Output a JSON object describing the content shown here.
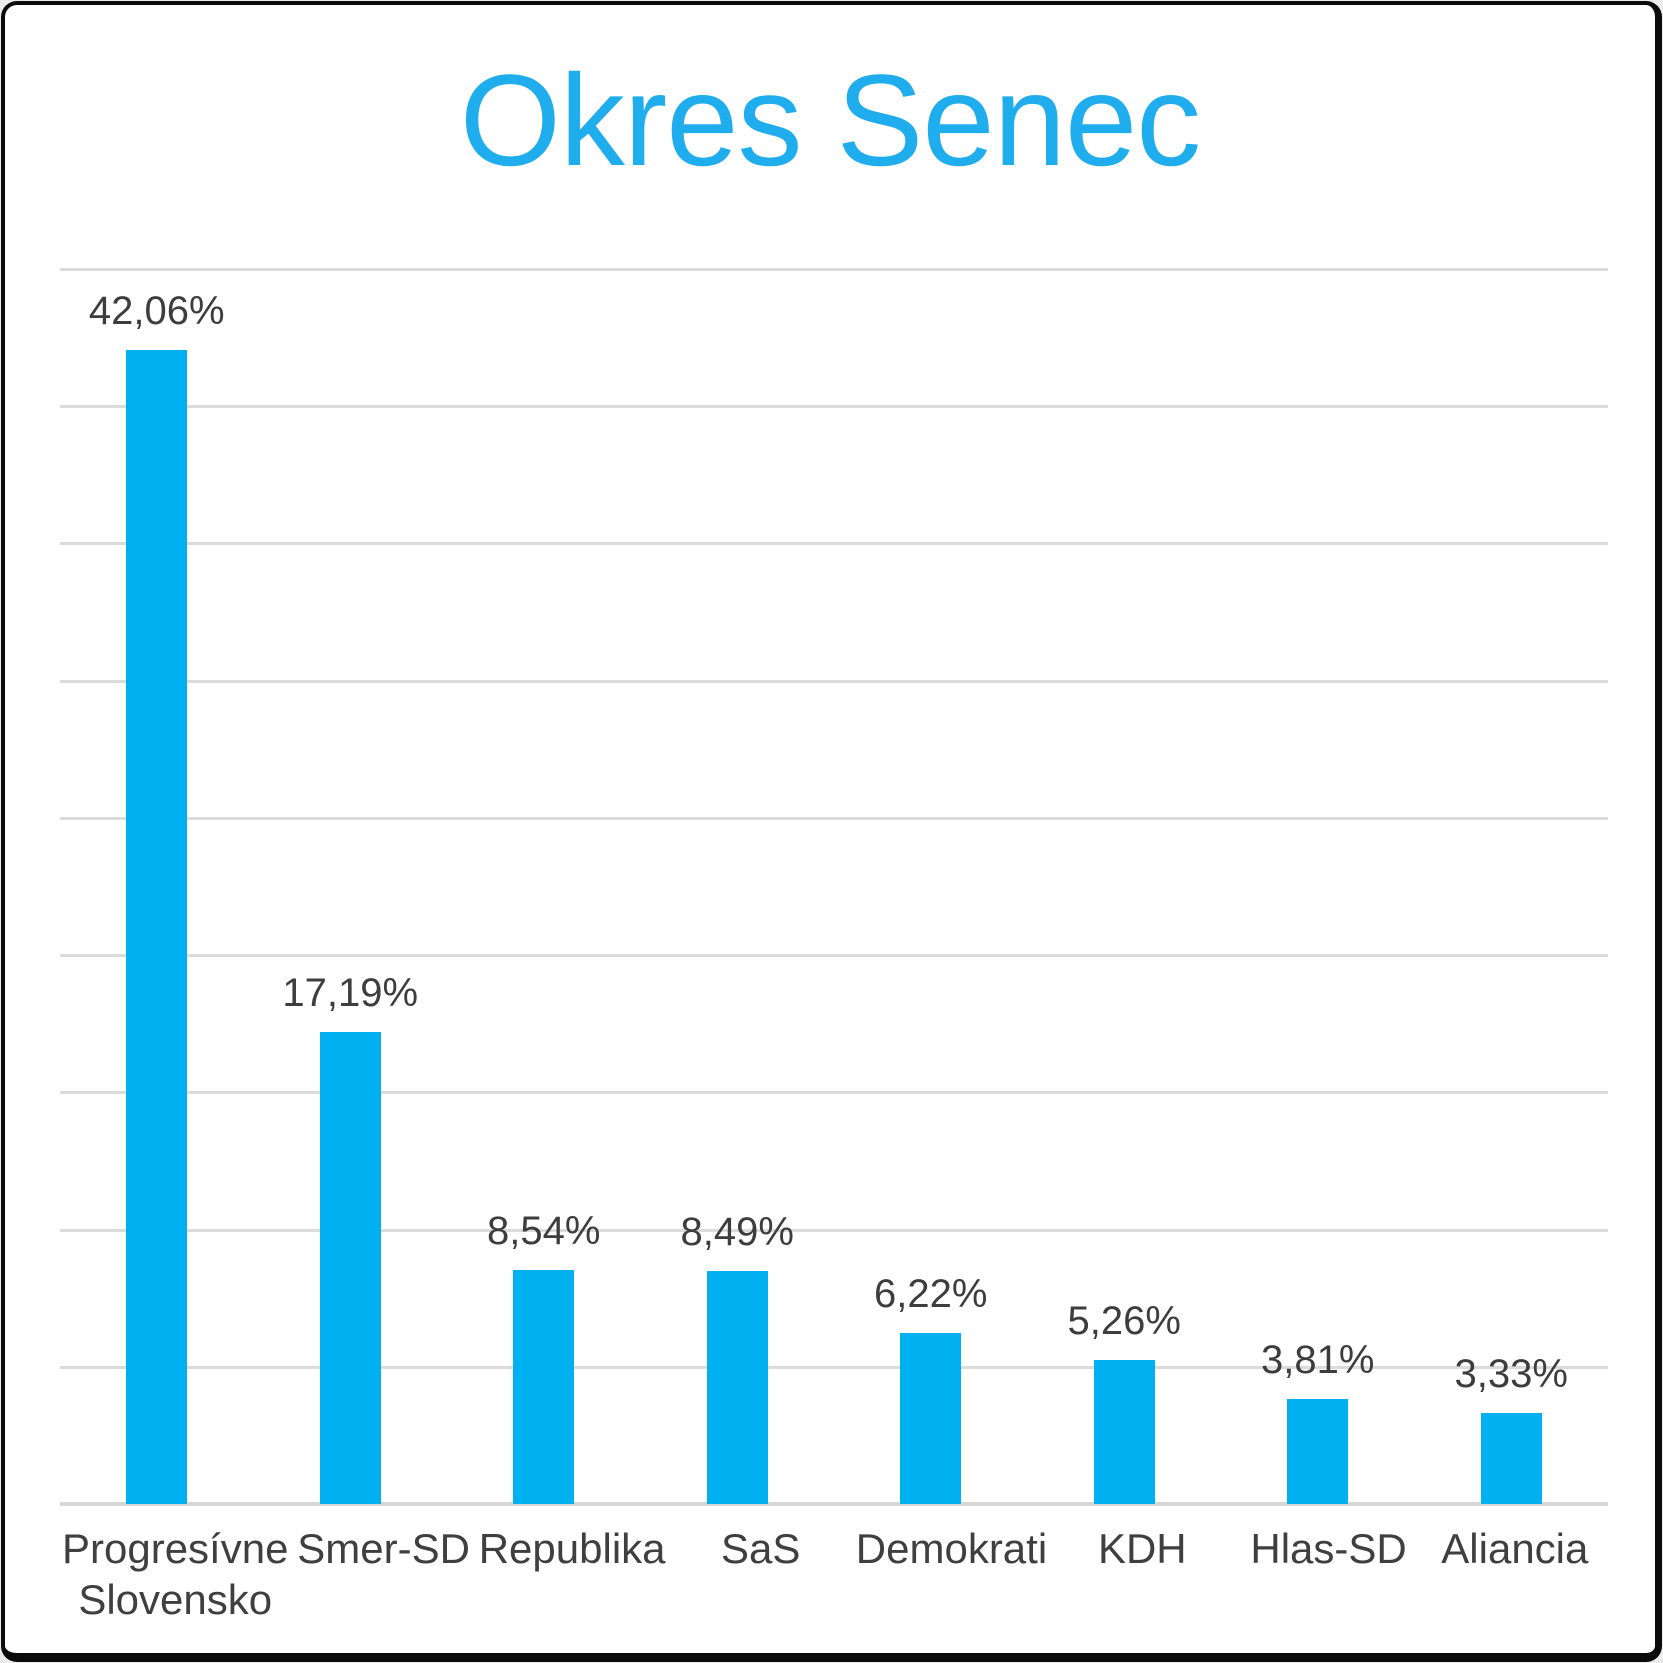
{
  "colors": {
    "title": "#1FADEE",
    "bar": "#00B0F0",
    "gridline": "#DBDBDB",
    "axisline": "#D6D6D6",
    "label": "#3D3D3D",
    "category": "#3F3F3F",
    "frame_border": "#0B0B0B",
    "background": "#FFFFFF"
  },
  "chart_data": {
    "type": "bar",
    "title": "Okres Senec",
    "categories": [
      "Progresívne Slovensko",
      "Smer-SD",
      "Republika",
      "SaS",
      "Demokrati",
      "KDH",
      "Hlas-SD",
      "Aliancia"
    ],
    "values": [
      42.06,
      17.19,
      8.54,
      8.49,
      6.22,
      5.26,
      3.81,
      3.33
    ],
    "value_labels": [
      "42,06%",
      "17,19%",
      "8,54%",
      "8,49%",
      "6,22%",
      "5,26%",
      "3,81%",
      "3,33%"
    ],
    "xlabel": "",
    "ylabel": "",
    "ylim": [
      0,
      45
    ],
    "gridline_step": 5,
    "grid": true,
    "y_tick_labels_visible": false,
    "legend": false,
    "bar_color": "#00B0F0"
  }
}
